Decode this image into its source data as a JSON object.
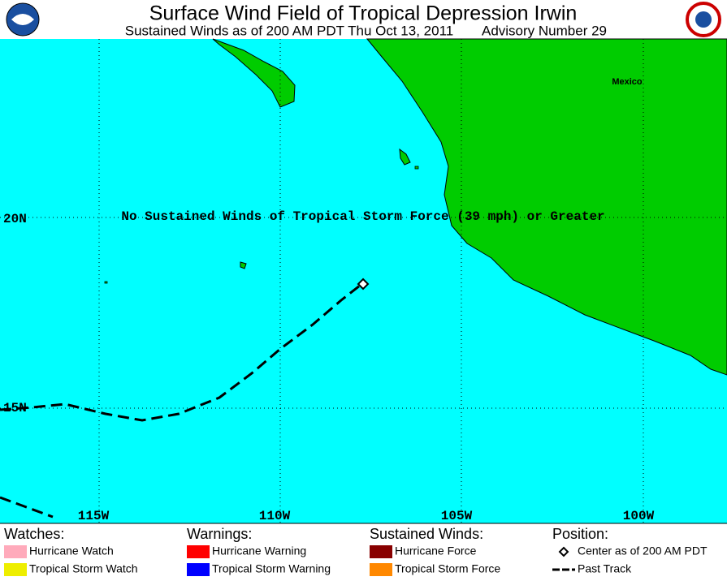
{
  "header": {
    "title": "Surface Wind Field of Tropical Depression Irwin",
    "subtitle": "Sustained Winds as of 200 AM PDT Thu Oct 13, 2011",
    "advisory": "Advisory Number 29"
  },
  "map": {
    "country_label": "Mexico",
    "latitude_labels": [
      "20N",
      "15N"
    ],
    "longitude_labels": [
      "115W",
      "110W",
      "105W",
      "100W"
    ],
    "annotation": "No Sustained Winds of Tropical Storm Force (39 mph) or Greater"
  },
  "legend": [
    {
      "heading": "Watches:",
      "items": [
        {
          "label": "Hurricane Watch",
          "color": "#ffaabb"
        },
        {
          "label": "Tropical Storm Watch",
          "color": "#eeee00"
        }
      ]
    },
    {
      "heading": "Warnings:",
      "items": [
        {
          "label": "Hurricane Warning",
          "color": "#ff0000"
        },
        {
          "label": "Tropical Storm Warning",
          "color": "#0000ff"
        }
      ]
    },
    {
      "heading": "Sustained Winds:",
      "items": [
        {
          "label": "Hurricane Force",
          "color": "#880000"
        },
        {
          "label": "Tropical Storm Force",
          "color": "#ff8800"
        }
      ]
    },
    {
      "heading": "Position:",
      "items": [
        {
          "label": "Center as of 200 AM PDT",
          "symbol": "diamond"
        },
        {
          "label": "Past Track",
          "symbol": "dash"
        }
      ]
    }
  ]
}
